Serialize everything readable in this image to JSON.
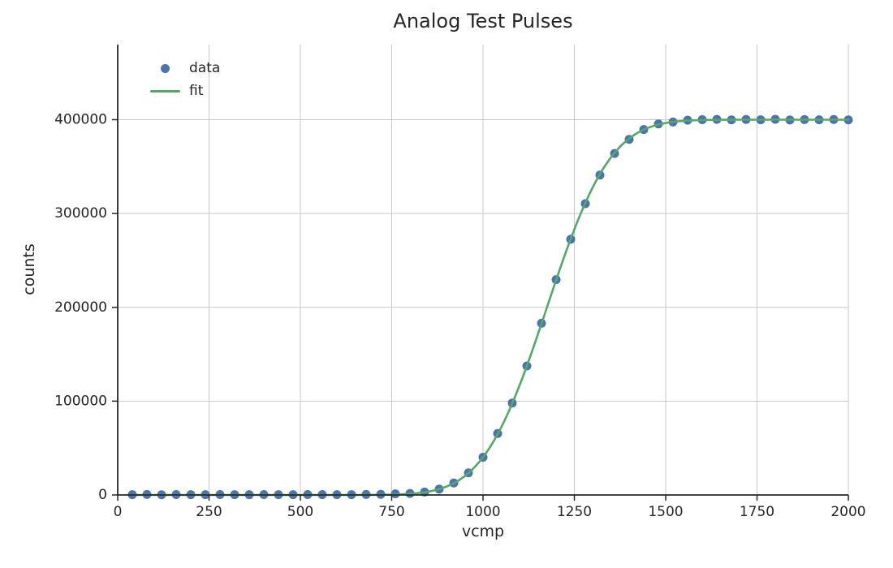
{
  "chart_data": {
    "type": "scatter",
    "title": "Analog Test Pulses",
    "xlabel": "vcmp",
    "ylabel": "counts",
    "xlim": [
      0,
      2000
    ],
    "ylim": [
      0,
      480000
    ],
    "x_ticks": [
      0,
      250,
      500,
      750,
      1000,
      1250,
      1500,
      1750,
      2000
    ],
    "y_ticks": [
      0,
      100000,
      200000,
      300000,
      400000
    ],
    "grid": true,
    "legend": {
      "position": "upper left",
      "entries": [
        {
          "label": "data",
          "marker": "point",
          "color": "#4c72b0"
        },
        {
          "label": "fit",
          "marker": "line",
          "color": "#55a868"
        }
      ]
    },
    "style": {
      "point_color": "#4c72b0",
      "line_color": "#55a868",
      "grid_color": "#c9c9c9",
      "spine_color": "#262626",
      "tick_color": "#262626",
      "text_color": "#262626"
    },
    "series": [
      {
        "name": "data",
        "type": "scatter",
        "color": "#4c72b0",
        "x": [
          40,
          80,
          120,
          160,
          200,
          240,
          280,
          320,
          360,
          400,
          440,
          480,
          520,
          560,
          600,
          640,
          680,
          720,
          760,
          800,
          840,
          880,
          920,
          960,
          1000,
          1040,
          1080,
          1120,
          1160,
          1200,
          1240,
          1280,
          1320,
          1360,
          1400,
          1440,
          1480,
          1520,
          1560,
          1600,
          1640,
          1680,
          1720,
          1760,
          1800,
          1840,
          1880,
          1920,
          1960,
          2000
        ],
        "y": [
          300,
          500,
          250,
          400,
          350,
          300,
          450,
          320,
          280,
          400,
          350,
          300,
          420,
          380,
          300,
          350,
          500,
          700,
          1200,
          1600,
          3100,
          6300,
          12800,
          23600,
          40200,
          65500,
          98000,
          137500,
          183000,
          229500,
          272500,
          310500,
          341000,
          364000,
          379000,
          389500,
          395500,
          397500,
          399500,
          400000,
          400300,
          399800,
          400200,
          399900,
          400400,
          399700,
          400100,
          399900,
          400200,
          399800
        ]
      },
      {
        "name": "fit",
        "type": "line",
        "color": "#55a868",
        "fit_function": "gaussian_cdf",
        "params": {
          "amplitude": 400000,
          "center": 1175,
          "sigma": 137,
          "baseline": 0
        },
        "x_range": [
          40,
          2000
        ],
        "x_step": 10
      }
    ]
  }
}
